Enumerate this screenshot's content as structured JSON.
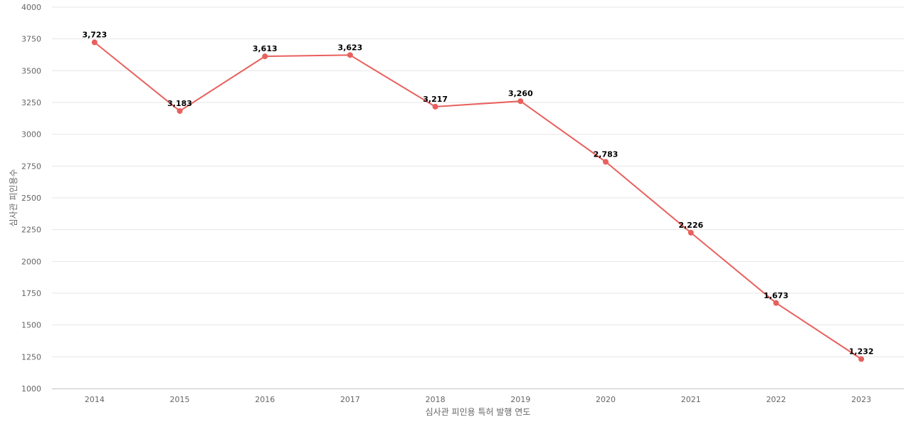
{
  "chart_data": {
    "type": "line",
    "x": [
      "2014",
      "2015",
      "2016",
      "2017",
      "2018",
      "2019",
      "2020",
      "2021",
      "2022",
      "2023"
    ],
    "series": [
      {
        "values": [
          3723,
          3183,
          3613,
          3623,
          3217,
          3260,
          2783,
          2226,
          1673,
          1232
        ],
        "labels": [
          "3,723",
          "3,183",
          "3,613",
          "3,623",
          "3,217",
          "3,260",
          "2,783",
          "2,226",
          "1,673",
          "1,232"
        ],
        "color": "#e8605d"
      }
    ],
    "xlabel": "심사관 피인용 특허 발행 연도",
    "ylabel": "심사관 피인용수",
    "ylim": [
      1000,
      4000
    ],
    "yticks": [
      "1000",
      "1250",
      "1500",
      "1750",
      "2000",
      "2250",
      "2500",
      "2750",
      "3000",
      "3250",
      "3500",
      "3750",
      "4000"
    ],
    "grid": true,
    "legend": "none"
  }
}
